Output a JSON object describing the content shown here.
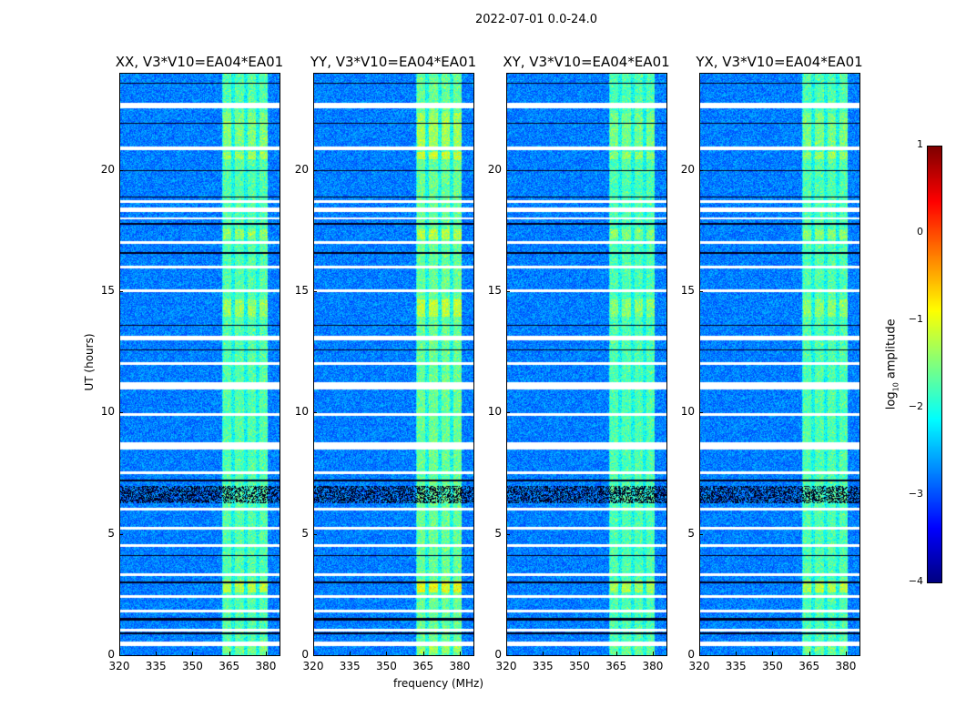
{
  "chart_data": {
    "type": "heatmap",
    "suptitle": "2022-07-01 0.0-24.0",
    "xlabel": "frequency (MHz)",
    "ylabel": "UT (hours)",
    "xlim": [
      320,
      386
    ],
    "ylim": [
      0,
      24
    ],
    "xticks": [
      "320",
      "335",
      "350",
      "365",
      "380"
    ],
    "xtick_values": [
      320,
      335,
      350,
      365,
      380
    ],
    "yticks": [
      "0",
      "5",
      "10",
      "15",
      "20"
    ],
    "ytick_values": [
      0,
      5,
      10,
      15,
      20
    ],
    "panels": [
      {
        "title": "XX, V3*V10=EA04*EA01",
        "boost": 1.0
      },
      {
        "title": "YY, V3*V10=EA04*EA01",
        "boost": 1.3
      },
      {
        "title": "XY, V3*V10=EA04*EA01",
        "boost": 0.9
      },
      {
        "title": "YX, V3*V10=EA04*EA01",
        "boost": 0.95
      }
    ],
    "rfi_channels_mhz": [
      [
        362.5,
        366
      ],
      [
        367.5,
        371
      ],
      [
        372.5,
        376
      ],
      [
        377.5,
        381
      ]
    ],
    "bright_hours": [
      [
        21.0,
        22.4,
        1.6
      ],
      [
        20.5,
        20.8,
        2.0
      ],
      [
        17.2,
        17.6,
        1.8
      ],
      [
        14.0,
        14.7,
        1.9
      ],
      [
        2.6,
        3.1,
        2.4
      ],
      [
        0.1,
        0.4,
        1.5
      ]
    ],
    "flagged_hours": [
      [
        22.6,
        22.8
      ],
      [
        20.85,
        21.0
      ],
      [
        18.7,
        18.8
      ],
      [
        18.3,
        18.5
      ],
      [
        18.0,
        18.1
      ],
      [
        17.0,
        17.1
      ],
      [
        16.0,
        16.1
      ],
      [
        15.0,
        15.1
      ],
      [
        13.0,
        13.2
      ],
      [
        12.0,
        12.1
      ],
      [
        11.0,
        11.3
      ],
      [
        9.9,
        10.0
      ],
      [
        8.5,
        8.8
      ],
      [
        7.5,
        7.6
      ],
      [
        6.0,
        6.1
      ],
      [
        5.2,
        5.3
      ],
      [
        4.5,
        4.6
      ],
      [
        3.3,
        3.4
      ],
      [
        2.4,
        2.5
      ],
      [
        1.8,
        1.9
      ],
      [
        1.0,
        1.1
      ],
      [
        0.4,
        0.6
      ]
    ],
    "black_lines_hours": [
      [
        23.6,
        23.65
      ],
      [
        21.95,
        22.0
      ],
      [
        20.0,
        20.05
      ],
      [
        18.9,
        18.95
      ],
      [
        17.8,
        17.85
      ],
      [
        16.6,
        16.65
      ],
      [
        13.6,
        13.65
      ],
      [
        12.6,
        12.65
      ],
      [
        7.2,
        7.25
      ],
      [
        6.3,
        7.0
      ],
      [
        4.1,
        4.15
      ],
      [
        3.0,
        3.05
      ],
      [
        1.45,
        1.55
      ],
      [
        0.9,
        0.95
      ]
    ],
    "colorbar": {
      "label": "log10 amplitude",
      "label_main": "log",
      "label_sub": "10",
      "label_rest": " amplitude",
      "range": [
        -4,
        1
      ],
      "ticks": [
        "1",
        "0",
        "−1",
        "−2",
        "−3",
        "−4"
      ],
      "tick_values": [
        1,
        0,
        -1,
        -2,
        -3,
        -4
      ],
      "colormap": "jet"
    }
  }
}
